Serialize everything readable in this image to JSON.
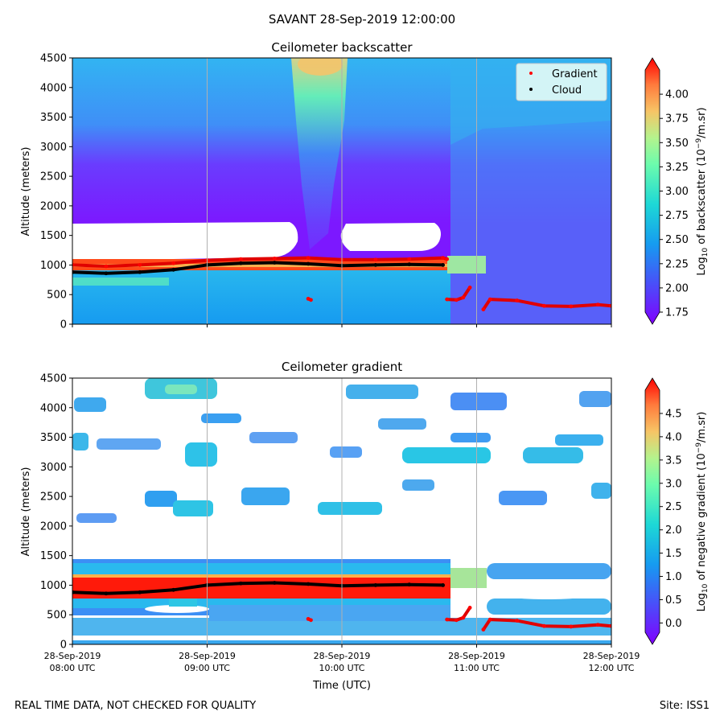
{
  "figure": {
    "suptitle": "SAVANT 28-Sep-2019 12:00:00",
    "footer_note": "REAL TIME DATA, NOT CHECKED FOR QUALITY",
    "site_label": "Site: ISS1"
  },
  "chart_data": [
    {
      "type": "heatmap",
      "title": "Ceilometer backscatter",
      "ylabel": "Altitude (meters)",
      "xlabel": "",
      "ylim": [
        0,
        4500
      ],
      "yticks": [
        0,
        500,
        1000,
        1500,
        2000,
        2500,
        3000,
        3500,
        4000,
        4500
      ],
      "xlim_hours_utc": [
        8,
        12
      ],
      "xticks_hours_utc": [
        8,
        9,
        10,
        11,
        12
      ],
      "xticklabels": [],
      "legend": {
        "position": "top-right",
        "entries": [
          {
            "label": "Gradient",
            "color": "#ff0000"
          },
          {
            "label": "Cloud",
            "color": "#000000"
          }
        ]
      },
      "colorbar": {
        "label_prefix": "Log",
        "label_sub": "10",
        "label_mid": " of backscatter (10",
        "label_sup": "−9",
        "label_suffix": "/m.sr)",
        "range": [
          1.75,
          4.25
        ],
        "ticks": [
          "1.75",
          "2.00",
          "2.25",
          "2.50",
          "2.75",
          "3.00",
          "3.25",
          "3.50",
          "3.75",
          "4.00"
        ],
        "colormap": "rainbow"
      },
      "cloud_base_m": {
        "time_hours": [
          8.0,
          8.25,
          8.5,
          8.75,
          9.0,
          9.25,
          9.5,
          9.75,
          10.0,
          10.25,
          10.5,
          10.75
        ],
        "altitude": [
          880,
          860,
          880,
          920,
          1000,
          1030,
          1040,
          1020,
          990,
          1000,
          1010,
          1000
        ]
      },
      "gradient_m": [
        {
          "time_hours": [
            8.0,
            8.25,
            8.5,
            8.75,
            9.0,
            9.25,
            9.5,
            9.75,
            10.0,
            10.25,
            10.5,
            10.75,
            10.78
          ],
          "altitude": [
            1000,
            980,
            1000,
            1030,
            1080,
            1100,
            1110,
            1120,
            1090,
            1090,
            1100,
            1120,
            1100
          ]
        },
        {
          "time_hours": [
            10.78,
            10.85,
            10.9,
            10.95
          ],
          "altitude": [
            420,
            410,
            450,
            620
          ]
        },
        {
          "time_hours": [
            11.05,
            11.1,
            11.3,
            11.5,
            11.7,
            11.9,
            12.0
          ],
          "altitude": [
            250,
            420,
            400,
            310,
            300,
            330,
            310
          ]
        },
        {
          "time_hours": [
            9.75,
            9.77
          ],
          "altitude": [
            430,
            410
          ]
        }
      ]
    },
    {
      "type": "heatmap",
      "title": "Ceilometer gradient",
      "ylabel": "Altitude (meters)",
      "xlabel": "Time (UTC)",
      "ylim": [
        0,
        4500
      ],
      "yticks": [
        0,
        500,
        1000,
        1500,
        2000,
        2500,
        3000,
        3500,
        4000,
        4500
      ],
      "xlim_hours_utc": [
        8,
        12
      ],
      "xticks_hours_utc": [
        8,
        9,
        10,
        11,
        12
      ],
      "xticklabels": [
        {
          "date": "28-Sep-2019",
          "time": "08:00 UTC"
        },
        {
          "date": "28-Sep-2019",
          "time": "09:00 UTC"
        },
        {
          "date": "28-Sep-2019",
          "time": "10:00 UTC"
        },
        {
          "date": "28-Sep-2019",
          "time": "11:00 UTC"
        },
        {
          "date": "28-Sep-2019",
          "time": "12:00 UTC"
        }
      ],
      "colorbar": {
        "label_prefix": "Log",
        "label_sub": "10",
        "label_mid": " of negative gradient (10",
        "label_sup": "−9",
        "label_suffix": "/m.sr)",
        "range": [
          -0.2,
          5.0
        ],
        "ticks": [
          "0.0",
          "0.5",
          "1.0",
          "1.5",
          "2.0",
          "2.5",
          "3.0",
          "3.5",
          "4.0",
          "4.5"
        ],
        "colormap": "rainbow"
      },
      "cloud_base_m": {
        "time_hours": [
          8.0,
          8.25,
          8.5,
          8.75,
          9.0,
          9.25,
          9.5,
          9.75,
          10.0,
          10.25,
          10.5,
          10.75
        ],
        "altitude": [
          880,
          860,
          880,
          920,
          1000,
          1030,
          1040,
          1020,
          990,
          1000,
          1010,
          1000
        ]
      },
      "gradient_m": [
        {
          "time_hours": [
            10.78,
            10.85,
            10.9,
            10.95
          ],
          "altitude": [
            420,
            410,
            450,
            620
          ]
        },
        {
          "time_hours": [
            11.05,
            11.1,
            11.3,
            11.5,
            11.7,
            11.9,
            12.0
          ],
          "altitude": [
            250,
            420,
            400,
            310,
            300,
            330,
            310
          ]
        },
        {
          "time_hours": [
            9.75,
            9.77
          ],
          "altitude": [
            430,
            410
          ]
        }
      ]
    }
  ]
}
